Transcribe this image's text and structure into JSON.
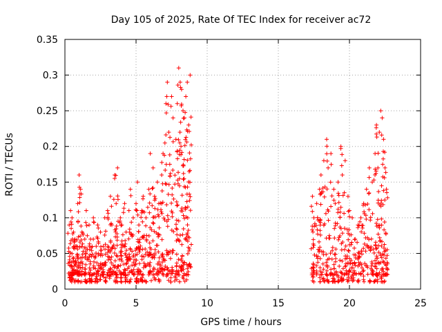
{
  "chart_data": {
    "type": "scatter",
    "title": "Day 105 of 2025, Rate Of TEC Index for receiver ac72",
    "xlabel": "GPS time / hours",
    "ylabel": "ROTI / TECUs",
    "xlim": [
      0,
      25
    ],
    "ylim": [
      0,
      0.35
    ],
    "xticks": [
      0,
      5,
      10,
      15,
      20,
      25
    ],
    "xtick_labels": [
      "0",
      "5",
      "10",
      "15",
      "20",
      "25"
    ],
    "yticks": [
      0,
      0.05,
      0.1,
      0.15,
      0.2,
      0.25,
      0.3,
      0.35
    ],
    "ytick_labels": [
      "0",
      "0.05",
      "0.1",
      "0.15",
      "0.2",
      "0.25",
      "0.3",
      "0.35"
    ],
    "grid": true,
    "marker": "plus",
    "color": "#ff0000",
    "series": [
      {
        "x": [
          0.3,
          0.4,
          0.5,
          0.6,
          0.7,
          0.8,
          0.9,
          1.0,
          1.1,
          1.2,
          1.4,
          1.5,
          1.7,
          1.8,
          2.0,
          2.2,
          2.3,
          2.5,
          2.7,
          2.8,
          3.0,
          3.2,
          3.3,
          3.5,
          3.6,
          3.7,
          3.9,
          4.0,
          4.2,
          4.3,
          4.5,
          4.6,
          4.8,
          5.0,
          5.1,
          5.2,
          5.4,
          5.5,
          5.7,
          5.9,
          6.0,
          6.2,
          6.3,
          6.5,
          6.6,
          6.8,
          6.9,
          7.1,
          7.2,
          7.3,
          7.5,
          7.6,
          7.8,
          7.9,
          8.0,
          8.1,
          8.2,
          8.3,
          8.4,
          8.5,
          8.6,
          8.7,
          8.8,
          17.4,
          17.5,
          17.7,
          17.9,
          18.0,
          18.2,
          18.4,
          18.5,
          18.7,
          18.9,
          19.0,
          19.2,
          19.4,
          19.5,
          19.7,
          19.9,
          20.0,
          20.2,
          20.4,
          20.6,
          20.8,
          21.0,
          21.2,
          21.4,
          21.6,
          21.8,
          21.9,
          22.0,
          22.1,
          22.2,
          22.3,
          22.4,
          22.5,
          22.6
        ],
        "y": [
          0.09,
          0.11,
          0.1,
          0.08,
          0.07,
          0.06,
          0.12,
          0.16,
          0.14,
          0.08,
          0.07,
          0.11,
          0.09,
          0.07,
          0.1,
          0.06,
          0.09,
          0.08,
          0.06,
          0.1,
          0.11,
          0.13,
          0.09,
          0.16,
          0.12,
          0.17,
          0.1,
          0.09,
          0.12,
          0.08,
          0.11,
          0.14,
          0.1,
          0.12,
          0.15,
          0.09,
          0.11,
          0.13,
          0.1,
          0.14,
          0.19,
          0.17,
          0.13,
          0.15,
          0.12,
          0.16,
          0.19,
          0.26,
          0.29,
          0.22,
          0.27,
          0.24,
          0.21,
          0.26,
          0.31,
          0.29,
          0.28,
          0.25,
          0.24,
          0.27,
          0.29,
          0.23,
          0.3,
          0.13,
          0.1,
          0.12,
          0.14,
          0.16,
          0.18,
          0.21,
          0.17,
          0.19,
          0.14,
          0.12,
          0.15,
          0.2,
          0.16,
          0.18,
          0.13,
          0.11,
          0.1,
          0.07,
          0.09,
          0.1,
          0.12,
          0.14,
          0.17,
          0.15,
          0.19,
          0.23,
          0.17,
          0.22,
          0.25,
          0.24,
          0.21,
          0.17,
          0.14
        ],
        "y_low": [
          0.02,
          0.01,
          0.01,
          0.02,
          0.01,
          0.02,
          0.02,
          0.01,
          0.02,
          0.01,
          0.02,
          0.01,
          0.02,
          0.01,
          0.02,
          0.01,
          0.02,
          0.01,
          0.02,
          0.01,
          0.02,
          0.01,
          0.02,
          0.01,
          0.02,
          0.01,
          0.02,
          0.01,
          0.02,
          0.01,
          0.02,
          0.01,
          0.02,
          0.01,
          0.01,
          0.02,
          0.01,
          0.02,
          0.01,
          0.02,
          0.01,
          0.02,
          0.01,
          0.02,
          0.01,
          0.02,
          0.02,
          0.02,
          0.01,
          0.02,
          0.01,
          0.02,
          0.01,
          0.02,
          0.02,
          0.01,
          0.02,
          0.01,
          0.02,
          0.01,
          0.02,
          0.02,
          0.03,
          0.02,
          0.01,
          0.02,
          0.01,
          0.02,
          0.01,
          0.02,
          0.01,
          0.02,
          0.01,
          0.02,
          0.01,
          0.02,
          0.01,
          0.02,
          0.01,
          0.02,
          0.01,
          0.02,
          0.01,
          0.02,
          0.01,
          0.02,
          0.01,
          0.02,
          0.01,
          0.02,
          0.01,
          0.02,
          0.01,
          0.02,
          0.01,
          0.02,
          0.02
        ]
      }
    ]
  }
}
